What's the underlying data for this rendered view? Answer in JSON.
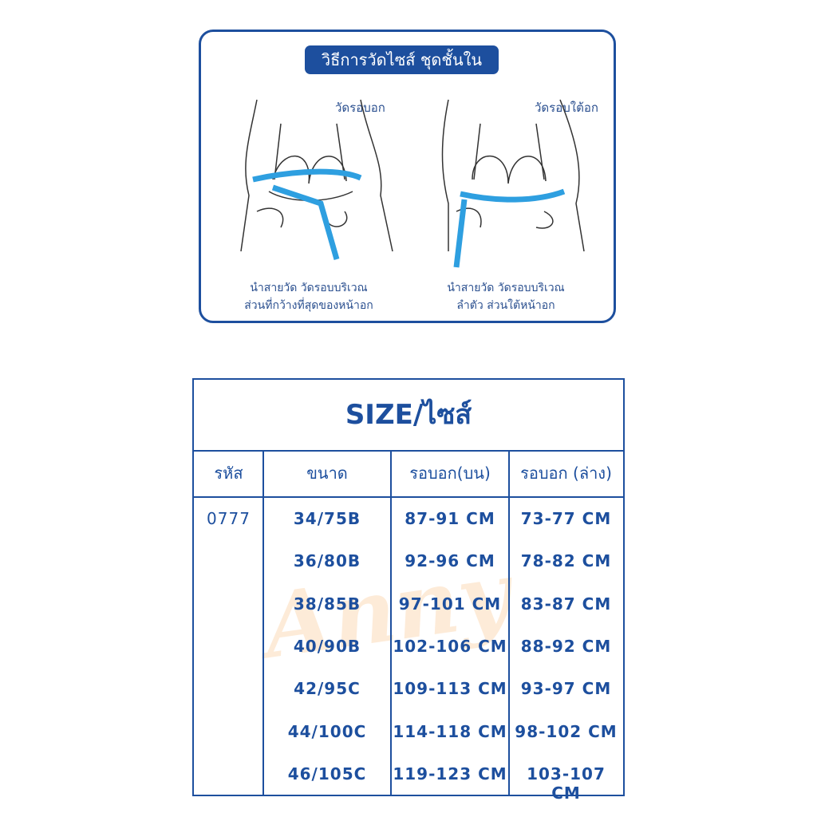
{
  "guide": {
    "title": "วิธีการวัดไซส์ ชุดชั้นใน",
    "left_label": "วัดรอบอก",
    "right_label": "วัดรอบใต้อก",
    "left_caption": [
      "นำสายวัด วัดรอบบริเวณ",
      "ส่วนที่กว้างที่สุดของหน้าอก"
    ],
    "right_caption": [
      "นำสายวัด วัดรอบบริเวณ",
      "ลำตัว ส่วนใต้หน้าอก"
    ],
    "tape_color": "#2e9fe0"
  },
  "size_table": {
    "title": "SIZE/ไซส์",
    "watermark": "Anny",
    "headers": [
      "รหัส",
      "ขนาด",
      "รอบอก(บน)",
      "รอบอก (ล่าง)"
    ],
    "code": "0777",
    "rows": [
      {
        "size": "34/75B",
        "upper": "87-91 CM",
        "lower": "73-77 CM"
      },
      {
        "size": "36/80B",
        "upper": "92-96 CM",
        "lower": "78-82 CM"
      },
      {
        "size": "38/85B",
        "upper": "97-101 CM",
        "lower": "83-87 CM"
      },
      {
        "size": "40/90B",
        "upper": "102-106 CM",
        "lower": "88-92 CM"
      },
      {
        "size": "42/95C",
        "upper": "109-113 CM",
        "lower": "93-97 CM"
      },
      {
        "size": "44/100C",
        "upper": "114-118 CM",
        "lower": "98-102 CM"
      },
      {
        "size": "46/105C",
        "upper": "119-123 CM",
        "lower": "103-107 CM"
      }
    ],
    "accent": "#1d4f9e"
  }
}
